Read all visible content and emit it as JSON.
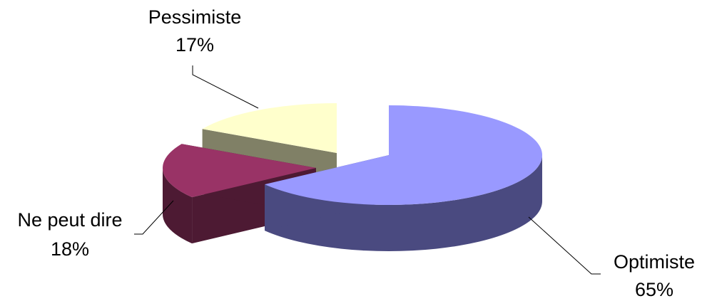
{
  "chart_data": {
    "type": "pie",
    "style": "3d-exploded",
    "slices": [
      {
        "label": "Optimiste",
        "value": 65,
        "percent_label": "65%",
        "top_color": "#9999FF",
        "side_color": "#4A4A80"
      },
      {
        "label": "Ne peut dire",
        "value": 18,
        "percent_label": "18%",
        "top_color": "#993366",
        "side_color": "#4D1A33"
      },
      {
        "label": "Pessimiste",
        "value": 17,
        "percent_label": "17%",
        "top_color": "#FFFFCC",
        "side_color": "#808066"
      }
    ]
  }
}
